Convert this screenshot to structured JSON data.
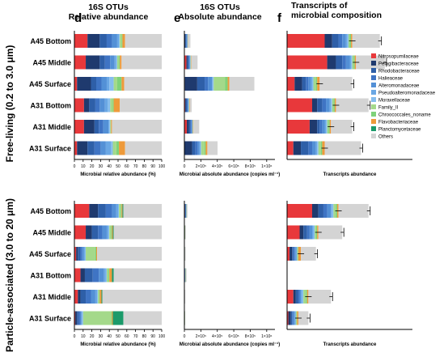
{
  "figure": {
    "panel_letters": [
      "d",
      "e",
      "f"
    ],
    "panel_titles": [
      [
        "16S OTUs",
        "Relative abundance"
      ],
      [
        "16S OTUs",
        "Absolute abundance"
      ],
      [
        "Transcripts of",
        "microbial composition"
      ]
    ],
    "fraction_labels": [
      "Free-living (0.2 to 3.0 μm)",
      "Particle-associated (3.0 to 20 μm)"
    ],
    "sample_labels": [
      "A45 Bottom",
      "A45  Middle",
      "A45 Surface",
      "A31 Bottom",
      "A31  Middle",
      "A31 Surface"
    ],
    "xlabels": [
      "Microbial relative abundance (%)",
      "Microbial absolute abundance (copies ml⁻¹)",
      "Transcripts abundance"
    ],
    "rel_ticks": [
      "0",
      "10",
      "20",
      "30",
      "40",
      "50",
      "60",
      "70",
      "80",
      "90",
      "100"
    ],
    "abs_ticks": [
      "0",
      "2×10⁵",
      "4×10⁵",
      "6×10⁵",
      "8×10⁵",
      "1×10⁶"
    ]
  },
  "legend": [
    {
      "name": "Nitrosopumilaceae",
      "color": "#e8383b"
    },
    {
      "name": "Pelagibacteraceae",
      "color": "#1f3a6e"
    },
    {
      "name": "Rhodobacteraceae",
      "color": "#2e5fa8"
    },
    {
      "name": "Halieaceae",
      "color": "#3f74c4"
    },
    {
      "name": "Alteromonadaceae",
      "color": "#5390d6"
    },
    {
      "name": "Pseudoalteromonadaceae",
      "color": "#6aa7e4"
    },
    {
      "name": "Moraxellaceae",
      "color": "#86bdee"
    },
    {
      "name": "Family_II",
      "color": "#a4d98a"
    },
    {
      "name": "Chroococcales_noname",
      "color": "#7fd27a"
    },
    {
      "name": "Flavobacteriaceae",
      "color": "#ee9a3a"
    },
    {
      "name": "Planctomycetaceae",
      "color": "#1b9a6a"
    },
    {
      "name": "Others",
      "color": "#d4d4d4"
    }
  ],
  "chart_data": [
    {
      "type": "bar",
      "orientation": "horizontal",
      "stacked": true,
      "panel": "d",
      "fraction": "Free-living (0.2 to 3.0 μm)",
      "categories": [
        "A45 Bottom",
        "A45  Middle",
        "A45 Surface",
        "A31 Bottom",
        "A31  Middle",
        "A31 Surface"
      ],
      "xlabel": "Microbial relative abundance (%)",
      "xlim": [
        0,
        100
      ],
      "series": [
        {
          "name": "Nitrosopumilaceae",
          "values": [
            15,
            13,
            3,
            11,
            11,
            3
          ]
        },
        {
          "name": "Pelagibacteraceae",
          "values": [
            14,
            16,
            16,
            6,
            12,
            12
          ]
        },
        {
          "name": "Rhodobacteraceae",
          "values": [
            8,
            6,
            6,
            7,
            5,
            8
          ]
        },
        {
          "name": "Halieaceae",
          "values": [
            6,
            6,
            6,
            5,
            5,
            7
          ]
        },
        {
          "name": "Alteromonadaceae",
          "values": [
            6,
            5,
            6,
            6,
            6,
            6
          ]
        },
        {
          "name": "Pseudoalteromonadaceae",
          "values": [
            2,
            2,
            3,
            3,
            1,
            6
          ]
        },
        {
          "name": "Moraxellaceae",
          "values": [
            1,
            1,
            5,
            3,
            1,
            2
          ]
        },
        {
          "name": "Family_II",
          "values": [
            2,
            2,
            4,
            3,
            1,
            4
          ]
        },
        {
          "name": "Chroococcales_noname",
          "values": [
            1,
            1,
            5,
            1,
            0,
            3
          ]
        },
        {
          "name": "Flavobacteriaceae",
          "values": [
            3,
            2,
            3,
            7,
            1,
            7
          ]
        },
        {
          "name": "Planctomycetaceae",
          "values": [
            0,
            0,
            0,
            0,
            0,
            0
          ]
        },
        {
          "name": "Others",
          "values": [
            42,
            46,
            43,
            48,
            57,
            42
          ]
        }
      ]
    },
    {
      "type": "bar",
      "orientation": "horizontal",
      "stacked": true,
      "panel": "e",
      "fraction": "Free-living (0.2 to 3.0 μm)",
      "categories": [
        "A45 Bottom",
        "A45  Middle",
        "A45 Surface",
        "A31 Bottom",
        "A31  Middle",
        "A31 Surface"
      ],
      "xlabel": "Microbial absolute abundance (copies ml⁻¹)",
      "xlim": [
        0,
        1100000
      ],
      "series": [
        {
          "name": "Nitrosopumilaceae",
          "values": [
            5000,
            25000,
            6000,
            9000,
            30000,
            4000
          ]
        },
        {
          "name": "Pelagibacteraceae",
          "values": [
            6000,
            10000,
            150000,
            6000,
            25000,
            90000
          ]
        },
        {
          "name": "Rhodobacteraceae",
          "values": [
            10000,
            15000,
            90000,
            15000,
            20000,
            40000
          ]
        },
        {
          "name": "Halieaceae",
          "values": [
            8000,
            10000,
            40000,
            10000,
            10000,
            30000
          ]
        },
        {
          "name": "Alteromonadaceae",
          "values": [
            6000,
            10000,
            50000,
            10000,
            10000,
            20000
          ]
        },
        {
          "name": "Pseudoalteromonadaceae",
          "values": [
            2000,
            3000,
            10000,
            3000,
            3000,
            15000
          ]
        },
        {
          "name": "Moraxellaceae",
          "values": [
            1000,
            2000,
            10000,
            2000,
            2000,
            5000
          ]
        },
        {
          "name": "Family_II",
          "values": [
            2000,
            3000,
            140000,
            3000,
            3000,
            40000
          ]
        },
        {
          "name": "Chroococcales_noname",
          "values": [
            1000,
            2000,
            30000,
            1000,
            1000,
            15000
          ]
        },
        {
          "name": "Flavobacteriaceae",
          "values": [
            2000,
            5000,
            20000,
            5000,
            5000,
            20000
          ]
        },
        {
          "name": "Planctomycetaceae",
          "values": [
            0,
            0,
            0,
            0,
            0,
            0
          ]
        },
        {
          "name": "Others",
          "values": [
            30000,
            75000,
            304000,
            25000,
            71000,
            124000
          ]
        }
      ]
    },
    {
      "type": "bar",
      "orientation": "horizontal",
      "stacked": true,
      "panel": "f",
      "fraction": "Free-living (0.2 to 3.0 μm)",
      "categories": [
        "A45 Bottom",
        "A45  Middle",
        "A45 Surface",
        "A31 Bottom",
        "A31  Middle",
        "A31 Surface"
      ],
      "xlabel": "Transcripts abundance",
      "xlim": [
        0,
        100
      ],
      "series": [
        {
          "name": "Nitrosopumilaceae",
          "values": [
            30,
            32,
            6,
            20,
            18,
            5
          ]
        },
        {
          "name": "Pelagibacteraceae",
          "values": [
            6,
            7,
            6,
            4,
            6,
            6
          ]
        },
        {
          "name": "Rhodobacteraceae",
          "values": [
            5,
            5,
            3,
            4,
            2,
            6
          ]
        },
        {
          "name": "Halieaceae",
          "values": [
            3,
            3,
            2,
            3,
            2,
            3
          ]
        },
        {
          "name": "Alteromonadaceae",
          "values": [
            3,
            3,
            2,
            3,
            2,
            3
          ]
        },
        {
          "name": "Pseudoalteromonadaceae",
          "values": [
            1,
            1,
            1,
            1,
            1,
            1
          ]
        },
        {
          "name": "Moraxellaceae",
          "values": [
            1,
            1,
            1,
            1,
            1,
            1
          ]
        },
        {
          "name": "Family_II",
          "values": [
            1,
            1,
            2,
            1,
            1,
            2
          ]
        },
        {
          "name": "Chroococcales_noname",
          "values": [
            1,
            1,
            1,
            1,
            1,
            1
          ]
        },
        {
          "name": "Flavobacteriaceae",
          "values": [
            1,
            1,
            2,
            1,
            1,
            2
          ]
        },
        {
          "name": "Planctomycetaceae",
          "values": [
            0,
            0,
            0,
            0,
            0,
            0
          ]
        },
        {
          "name": "Others",
          "values": [
            22,
            23,
            26,
            26,
            17,
            29
          ]
        }
      ]
    },
    {
      "type": "bar",
      "orientation": "horizontal",
      "stacked": true,
      "panel": "d",
      "fraction": "Particle-associated (3.0 to 20 μm)",
      "categories": [
        "A45 Bottom",
        "A45  Middle",
        "A45 Surface",
        "A31 Bottom",
        "A31  Middle",
        "A31 Surface"
      ],
      "xlabel": "Microbial relative abundance (%)",
      "xlim": [
        0,
        100
      ],
      "series": [
        {
          "name": "Nitrosopumilaceae",
          "values": [
            17,
            13,
            2,
            7,
            4,
            1
          ]
        },
        {
          "name": "Pelagibacteraceae",
          "values": [
            10,
            7,
            2,
            5,
            3,
            2
          ]
        },
        {
          "name": "Rhodobacteraceae",
          "values": [
            9,
            7,
            3,
            9,
            6,
            2
          ]
        },
        {
          "name": "Halieaceae",
          "values": [
            7,
            5,
            2,
            7,
            6,
            2
          ]
        },
        {
          "name": "Alteromonadaceae",
          "values": [
            5,
            5,
            2,
            6,
            5,
            1
          ]
        },
        {
          "name": "Pseudoalteromonadaceae",
          "values": [
            2,
            2,
            1,
            2,
            2,
            1
          ]
        },
        {
          "name": "Moraxellaceae",
          "values": [
            1,
            1,
            1,
            1,
            1,
            1
          ]
        },
        {
          "name": "Family_II",
          "values": [
            2,
            2,
            11,
            2,
            1,
            32
          ]
        },
        {
          "name": "Chroococcales_noname",
          "values": [
            1,
            1,
            1,
            1,
            1,
            1
          ]
        },
        {
          "name": "Flavobacteriaceae",
          "values": [
            1,
            1,
            1,
            3,
            2,
            1
          ]
        },
        {
          "name": "Planctomycetaceae",
          "values": [
            1,
            1,
            0,
            2,
            1,
            12
          ]
        },
        {
          "name": "Others",
          "values": [
            44,
            55,
            74,
            55,
            68,
            44
          ]
        }
      ]
    },
    {
      "type": "bar",
      "orientation": "horizontal",
      "stacked": true,
      "panel": "e",
      "fraction": "Particle-associated (3.0 to 20 μm)",
      "categories": [
        "A45 Bottom",
        "A45  Middle",
        "A45 Surface",
        "A31 Bottom",
        "A31  Middle",
        "A31 Surface"
      ],
      "xlabel": "Microbial absolute abundance (copies ml⁻¹)",
      "xlim": [
        0,
        1100000
      ],
      "series": [
        {
          "name": "Nitrosopumilaceae",
          "values": [
            6000,
            1000,
            500,
            2000,
            500,
            200
          ]
        },
        {
          "name": "Pelagibacteraceae",
          "values": [
            4000,
            1000,
            500,
            2000,
            500,
            200
          ]
        },
        {
          "name": "Rhodobacteraceae",
          "values": [
            5000,
            2000,
            1000,
            3000,
            1000,
            300
          ]
        },
        {
          "name": "Halieaceae",
          "values": [
            4000,
            1000,
            500,
            2000,
            500,
            200
          ]
        },
        {
          "name": "Alteromonadaceae",
          "values": [
            3000,
            1000,
            500,
            2000,
            500,
            200
          ]
        },
        {
          "name": "Pseudoalteromonadaceae",
          "values": [
            1000,
            500,
            200,
            1000,
            200,
            100
          ]
        },
        {
          "name": "Moraxellaceae",
          "values": [
            500,
            200,
            100,
            500,
            100,
            100
          ]
        },
        {
          "name": "Family_II",
          "values": [
            1000,
            500,
            2000,
            1000,
            200,
            2000
          ]
        },
        {
          "name": "Chroococcales_noname",
          "values": [
            500,
            200,
            100,
            500,
            100,
            100
          ]
        },
        {
          "name": "Flavobacteriaceae",
          "values": [
            1000,
            500,
            200,
            1000,
            200,
            100
          ]
        },
        {
          "name": "Planctomycetaceae",
          "values": [
            500,
            500,
            100,
            500,
            200,
            500
          ]
        },
        {
          "name": "Others",
          "values": [
            12000,
            9000,
            9000,
            12000,
            7000,
            3000
          ]
        }
      ]
    },
    {
      "type": "bar",
      "orientation": "horizontal",
      "stacked": true,
      "panel": "f",
      "fraction": "Particle-associated (3.0 to 20 μm)",
      "categories": [
        "A45 Bottom",
        "A45  Middle",
        "A45 Surface",
        "A31 Bottom",
        "A31  Middle",
        "A31 Surface"
      ],
      "xlabel": "Transcripts abundance",
      "xlim": [
        0,
        100
      ],
      "series": [
        {
          "name": "Nitrosopumilaceae",
          "values": [
            20,
            10,
            2,
            0,
            5,
            1
          ]
        },
        {
          "name": "Pelagibacteraceae",
          "values": [
            5,
            3,
            2,
            0,
            2,
            2
          ]
        },
        {
          "name": "Rhodobacteraceae",
          "values": [
            4,
            3,
            1,
            0,
            2,
            1
          ]
        },
        {
          "name": "Halieaceae",
          "values": [
            3,
            2,
            1,
            0,
            1,
            1
          ]
        },
        {
          "name": "Alteromonadaceae",
          "values": [
            3,
            2,
            1,
            0,
            1,
            1
          ]
        },
        {
          "name": "Pseudoalteromonadaceae",
          "values": [
            1,
            1,
            1,
            0,
            1,
            1
          ]
        },
        {
          "name": "Moraxellaceae",
          "values": [
            1,
            1,
            0,
            0,
            1,
            0
          ]
        },
        {
          "name": "Family_II",
          "values": [
            2,
            1,
            1,
            0,
            2,
            1
          ]
        },
        {
          "name": "Chroococcales_noname",
          "values": [
            1,
            1,
            0,
            0,
            1,
            0
          ]
        },
        {
          "name": "Flavobacteriaceae",
          "values": [
            1,
            1,
            2,
            0,
            1,
            1
          ]
        },
        {
          "name": "Planctomycetaceae",
          "values": [
            0,
            0,
            0,
            0,
            0,
            0
          ]
        },
        {
          "name": "Others",
          "values": [
            24,
            19,
            12,
            0,
            18,
            8
          ]
        }
      ]
    }
  ]
}
